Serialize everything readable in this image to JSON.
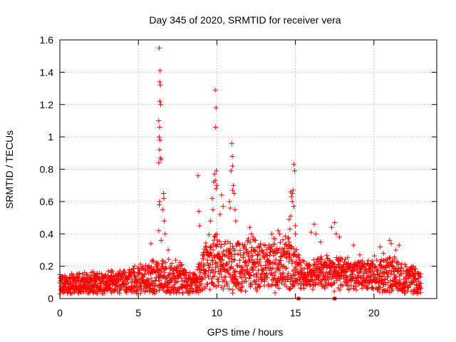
{
  "chart_data": {
    "type": "scatter",
    "title": "Day 345 of 2020, SRMTID for receiver vera",
    "xlabel": "GPS time / hours",
    "ylabel": "SRMTID / TECUs",
    "xlim": [
      0,
      24
    ],
    "ylim": [
      0,
      1.6
    ],
    "x_ticks": [
      0,
      5,
      10,
      15,
      20
    ],
    "x_tick_labels": [
      "0",
      "5",
      "10",
      "15",
      "20"
    ],
    "y_ticks": [
      0,
      0.2,
      0.4,
      0.6,
      0.8,
      1,
      1.2,
      1.4,
      1.6
    ],
    "y_tick_labels": [
      "0",
      "0.2",
      "0.4",
      "0.6",
      "0.8",
      "1",
      "1.2",
      "1.4",
      "1.6"
    ],
    "grid": true,
    "marker": "plus",
    "series_color": "#ff0000",
    "background_envelope": [
      {
        "x": 0.0,
        "base": 0.08,
        "amp": 0.08
      },
      {
        "x": 2.0,
        "base": 0.09,
        "amp": 0.08
      },
      {
        "x": 4.0,
        "base": 0.1,
        "amp": 0.09
      },
      {
        "x": 5.5,
        "base": 0.13,
        "amp": 0.12
      },
      {
        "x": 7.5,
        "base": 0.13,
        "amp": 0.12
      },
      {
        "x": 8.5,
        "base": 0.08,
        "amp": 0.08
      },
      {
        "x": 9.5,
        "base": 0.22,
        "amp": 0.2
      },
      {
        "x": 11.5,
        "base": 0.2,
        "amp": 0.2
      },
      {
        "x": 13.0,
        "base": 0.2,
        "amp": 0.16
      },
      {
        "x": 14.5,
        "base": 0.22,
        "amp": 0.2
      },
      {
        "x": 15.5,
        "base": 0.15,
        "amp": 0.1
      },
      {
        "x": 17.0,
        "base": 0.16,
        "amp": 0.12
      },
      {
        "x": 19.0,
        "base": 0.15,
        "amp": 0.1
      },
      {
        "x": 21.0,
        "base": 0.14,
        "amp": 0.14
      },
      {
        "x": 23.0,
        "base": 0.1,
        "amp": 0.08
      }
    ],
    "points": [
      {
        "x": 6.33,
        "y": 1.55
      },
      {
        "x": 6.38,
        "y": 1.41
      },
      {
        "x": 6.36,
        "y": 1.34
      },
      {
        "x": 6.4,
        "y": 1.32
      },
      {
        "x": 6.37,
        "y": 1.22
      },
      {
        "x": 6.42,
        "y": 1.2
      },
      {
        "x": 6.3,
        "y": 1.1
      },
      {
        "x": 6.35,
        "y": 1.06
      },
      {
        "x": 6.32,
        "y": 1.0
      },
      {
        "x": 6.38,
        "y": 0.98
      },
      {
        "x": 6.35,
        "y": 0.92
      },
      {
        "x": 6.4,
        "y": 0.87
      },
      {
        "x": 6.3,
        "y": 0.84
      },
      {
        "x": 6.45,
        "y": 0.86
      },
      {
        "x": 6.35,
        "y": 0.6
      },
      {
        "x": 6.33,
        "y": 0.58
      },
      {
        "x": 6.6,
        "y": 0.65
      },
      {
        "x": 6.62,
        "y": 0.62
      },
      {
        "x": 6.55,
        "y": 0.55
      },
      {
        "x": 6.65,
        "y": 0.48
      },
      {
        "x": 6.3,
        "y": 0.42
      },
      {
        "x": 6.7,
        "y": 0.4
      },
      {
        "x": 6.45,
        "y": 0.36
      },
      {
        "x": 8.8,
        "y": 0.76
      },
      {
        "x": 8.85,
        "y": 0.54
      },
      {
        "x": 8.9,
        "y": 0.45
      },
      {
        "x": 9.9,
        "y": 1.29
      },
      {
        "x": 9.95,
        "y": 1.18
      },
      {
        "x": 9.92,
        "y": 1.06
      },
      {
        "x": 9.97,
        "y": 0.79
      },
      {
        "x": 9.85,
        "y": 0.77
      },
      {
        "x": 9.9,
        "y": 0.73
      },
      {
        "x": 9.8,
        "y": 0.72
      },
      {
        "x": 10.0,
        "y": 0.7
      },
      {
        "x": 9.95,
        "y": 0.68
      },
      {
        "x": 9.7,
        "y": 0.62
      },
      {
        "x": 9.75,
        "y": 0.55
      },
      {
        "x": 9.6,
        "y": 0.48
      },
      {
        "x": 10.3,
        "y": 0.64
      },
      {
        "x": 10.4,
        "y": 0.57
      },
      {
        "x": 10.2,
        "y": 0.52
      },
      {
        "x": 10.95,
        "y": 0.96
      },
      {
        "x": 10.98,
        "y": 0.88
      },
      {
        "x": 11.0,
        "y": 0.82
      },
      {
        "x": 10.9,
        "y": 0.79
      },
      {
        "x": 11.05,
        "y": 0.7
      },
      {
        "x": 11.0,
        "y": 0.67
      },
      {
        "x": 11.1,
        "y": 0.65
      },
      {
        "x": 10.8,
        "y": 0.6
      },
      {
        "x": 10.85,
        "y": 0.56
      },
      {
        "x": 11.15,
        "y": 0.55
      },
      {
        "x": 11.2,
        "y": 0.48
      },
      {
        "x": 14.9,
        "y": 0.83
      },
      {
        "x": 14.95,
        "y": 0.79
      },
      {
        "x": 14.85,
        "y": 0.67
      },
      {
        "x": 14.8,
        "y": 0.65
      },
      {
        "x": 14.7,
        "y": 0.66
      },
      {
        "x": 14.75,
        "y": 0.63
      },
      {
        "x": 14.8,
        "y": 0.6
      },
      {
        "x": 14.9,
        "y": 0.57
      },
      {
        "x": 14.7,
        "y": 0.51
      },
      {
        "x": 14.6,
        "y": 0.49
      },
      {
        "x": 15.0,
        "y": 0.45
      },
      {
        "x": 14.65,
        "y": 0.43
      },
      {
        "x": 15.0,
        "y": 0.4
      },
      {
        "x": 14.6,
        "y": 0.35
      },
      {
        "x": 16.2,
        "y": 0.46
      },
      {
        "x": 16.0,
        "y": 0.41
      },
      {
        "x": 16.3,
        "y": 0.4
      },
      {
        "x": 16.6,
        "y": 0.35
      },
      {
        "x": 17.3,
        "y": 0.44
      },
      {
        "x": 17.5,
        "y": 0.47
      },
      {
        "x": 17.6,
        "y": 0.4
      },
      {
        "x": 17.8,
        "y": 0.38
      },
      {
        "x": 18.7,
        "y": 0.33
      },
      {
        "x": 19.1,
        "y": 0.27
      },
      {
        "x": 5.8,
        "y": 0.34
      },
      {
        "x": 6.9,
        "y": 0.3
      },
      {
        "x": 12.1,
        "y": 0.44
      },
      {
        "x": 12.2,
        "y": 0.4
      },
      {
        "x": 12.3,
        "y": 0.38
      },
      {
        "x": 12.0,
        "y": 0.37
      },
      {
        "x": 13.5,
        "y": 0.4
      },
      {
        "x": 13.7,
        "y": 0.37
      },
      {
        "x": 13.9,
        "y": 0.42
      },
      {
        "x": 14.0,
        "y": 0.4
      },
      {
        "x": 21.0,
        "y": 0.36
      },
      {
        "x": 21.1,
        "y": 0.34
      },
      {
        "x": 21.6,
        "y": 0.33
      },
      {
        "x": 21.4,
        "y": 0.3
      },
      {
        "x": 20.4,
        "y": 0.32
      },
      {
        "x": 20.6,
        "y": 0.28
      },
      {
        "x": 22.5,
        "y": 0.2
      }
    ],
    "square_markers": [
      {
        "x": 15.2,
        "y": 0.0
      },
      {
        "x": 17.5,
        "y": 0.0
      }
    ]
  }
}
